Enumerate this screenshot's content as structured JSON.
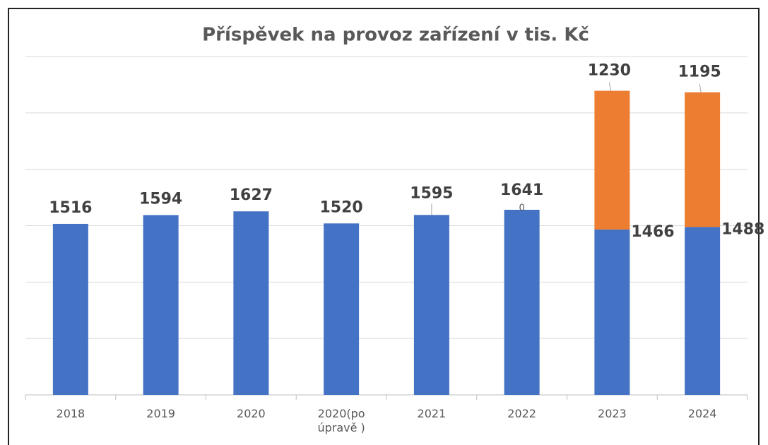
{
  "chart_data": {
    "type": "stacked_bar",
    "title": "Příspěvek na provoz zařízení v tis. Kč",
    "categories": [
      "2018",
      "2019",
      "2020",
      "2020(po úpravě )",
      "2021",
      "2022",
      "2023",
      "2024"
    ],
    "series": [
      {
        "color": "#4472c4",
        "values": [
          1516,
          1594,
          1627,
          1520,
          1595,
          1641,
          1466,
          1488
        ]
      },
      {
        "color": "#ed7d31",
        "values": [
          null,
          null,
          null,
          null,
          null,
          0,
          1230,
          1195
        ]
      }
    ],
    "ylim": [
      0,
      3000
    ],
    "yticks": [
      0,
      500,
      1000,
      1500,
      2000,
      2500,
      3000
    ],
    "grid": true
  }
}
